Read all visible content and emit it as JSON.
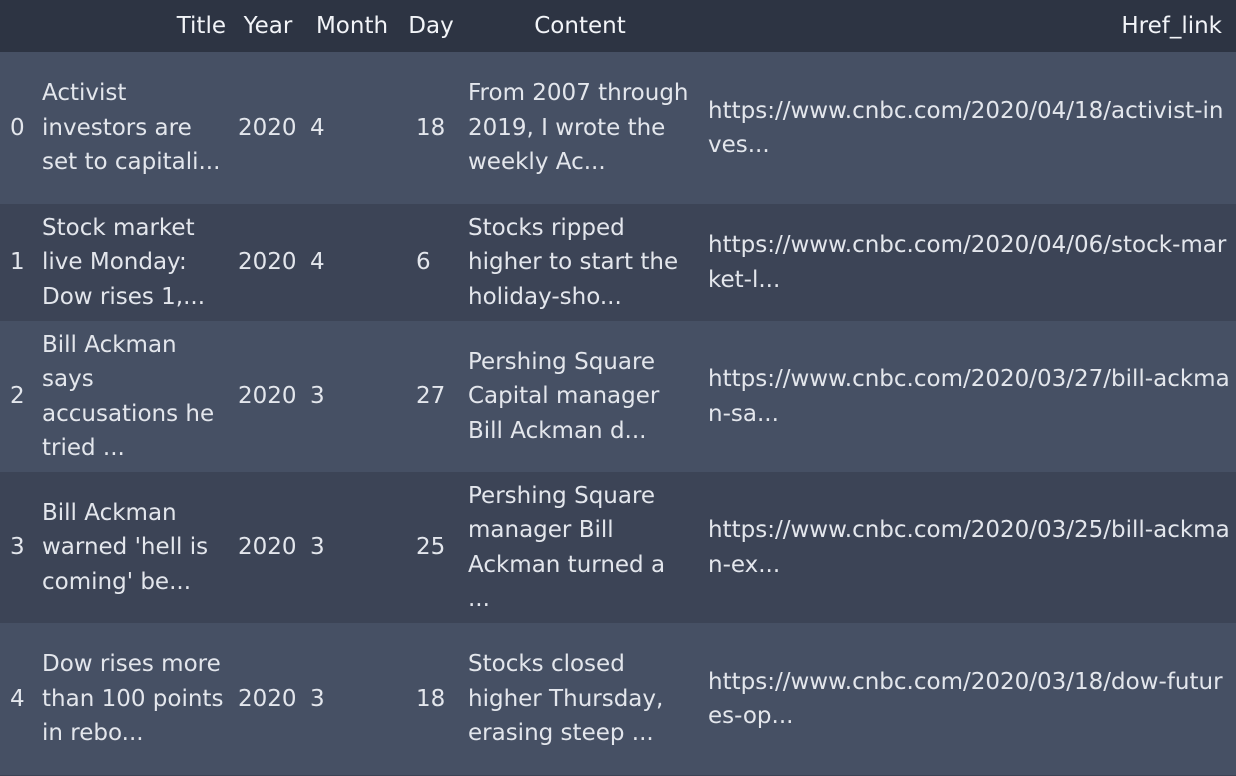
{
  "table": {
    "headers": {
      "index": "",
      "title": "Title",
      "year": "Year",
      "month": "Month",
      "day": "Day",
      "content": "Content",
      "href": "Href_link"
    },
    "rows": [
      {
        "index": "0",
        "title": "Activist investors are set to capitali...",
        "year": "2020",
        "month": "4",
        "day": "18",
        "content": "From 2007 through 2019, I wrote the weekly Ac...",
        "href": "https://www.cnbc.com/2020/04/18/activist-inves..."
      },
      {
        "index": "1",
        "title": "Stock market live Monday: Dow rises 1,...",
        "year": "2020",
        "month": "4",
        "day": "6",
        "content": "Stocks ripped higher to start the holiday-sho...",
        "href": "https://www.cnbc.com/2020/04/06/stock-market-l..."
      },
      {
        "index": "2",
        "title": "Bill Ackman says accusations he tried ...",
        "year": "2020",
        "month": "3",
        "day": "27",
        "content": "Pershing Square Capital manager Bill Ackman d...",
        "href": "https://www.cnbc.com/2020/03/27/bill-ackman-sa..."
      },
      {
        "index": "3",
        "title": "Bill Ackman warned 'hell is coming' be...",
        "year": "2020",
        "month": "3",
        "day": "25",
        "content": "Pershing Square manager Bill Ackman turned a ...",
        "href": "https://www.cnbc.com/2020/03/25/bill-ackman-ex..."
      },
      {
        "index": "4",
        "title": "Dow rises more than 100 points in rebo...",
        "year": "2020",
        "month": "3",
        "day": "18",
        "content": "Stocks closed higher Thursday, erasing steep ...",
        "href": "https://www.cnbc.com/2020/03/18/dow-futures-op..."
      }
    ]
  }
}
